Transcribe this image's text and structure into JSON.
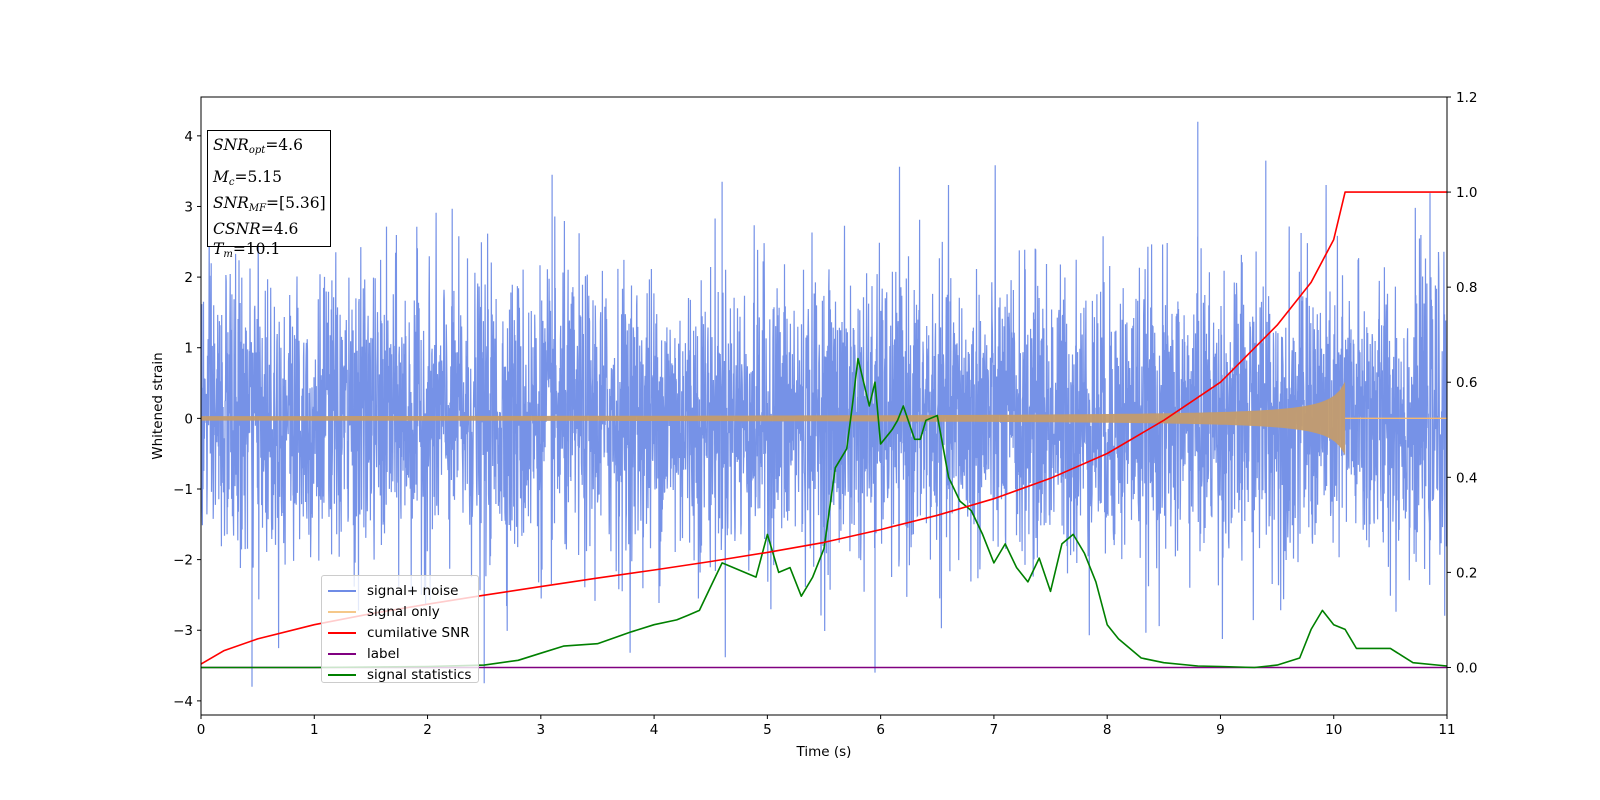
{
  "chart_data": {
    "type": "line",
    "xlabel": "Time (s)",
    "ylabel": "Whitened strain",
    "xlim": [
      0,
      11
    ],
    "ylim_left": [
      -4.2,
      4.55
    ],
    "ylim_right": [
      -0.1,
      1.2
    ],
    "x_ticks": [
      "0",
      "1",
      "2",
      "3",
      "4",
      "5",
      "6",
      "7",
      "8",
      "9",
      "10",
      "11"
    ],
    "y_left_ticks": [
      "−4",
      "−3",
      "−2",
      "−1",
      "0",
      "1",
      "2",
      "3",
      "4"
    ],
    "y_right_ticks": [
      "0.0",
      "0.2",
      "0.4",
      "0.6",
      "0.8",
      "1.0",
      "1.2"
    ],
    "colors": {
      "noise": "#6f8ce6",
      "signal_only": "#f5b870",
      "cumulative": "#ff0000",
      "label": "#800080",
      "statistics": "#008000"
    },
    "annotation": {
      "snr_opt_base": "SNR",
      "snr_opt_sub": "opt",
      "snr_opt_value": "=4.6",
      "mc_base": "M",
      "mc_sub": "c",
      "mc_value": "=5.15",
      "snr_mf_base": "SNR",
      "snr_mf_sub": "MF",
      "snr_mf_value": "=[5.36]",
      "csnr_base": "CSNR",
      "csnr_value": "=4.6",
      "tm_base": "T",
      "tm_sub": "m",
      "tm_value": "=10.1"
    },
    "legend": [
      {
        "name": "signal+ noise",
        "color": "#6f8ce6"
      },
      {
        "name": "signal only",
        "color": "#f5c88a"
      },
      {
        "name": "cumilative SNR",
        "color": "#ff0000"
      },
      {
        "name": "label",
        "color": "#800080"
      },
      {
        "name": "signal statistics",
        "color": "#008000"
      }
    ],
    "series": [
      {
        "name": "signal+ noise",
        "axis": "left",
        "description_level": "white noise, std ~1.0, range approx -3.8 to 4.2",
        "x_range": [
          0,
          11
        ],
        "noise_std": 1.0,
        "peaks": [
          [
            0.45,
            -3.8
          ],
          [
            2.5,
            -3.75
          ],
          [
            5.95,
            -3.6
          ],
          [
            8.8,
            4.2
          ],
          [
            9.4,
            3.65
          ],
          [
            3.1,
            3.45
          ],
          [
            4.6,
            3.35
          ]
        ]
      },
      {
        "name": "signal only",
        "axis": "left",
        "chirp_end": 10.1,
        "amplitude_start": 0.02,
        "amplitude_end": 0.52
      },
      {
        "name": "cumilative SNR",
        "axis": "right",
        "x": [
          0,
          0.2,
          0.5,
          1.0,
          1.5,
          2.0,
          2.5,
          3.0,
          3.5,
          4.0,
          4.5,
          5.0,
          5.5,
          6.0,
          6.5,
          7.0,
          7.5,
          8.0,
          8.5,
          9.0,
          9.5,
          9.8,
          10.0,
          10.1,
          11.0
        ],
        "y": [
          0.007,
          0.035,
          0.06,
          0.09,
          0.113,
          0.133,
          0.152,
          0.17,
          0.188,
          0.205,
          0.223,
          0.242,
          0.263,
          0.29,
          0.32,
          0.355,
          0.398,
          0.45,
          0.52,
          0.6,
          0.72,
          0.81,
          0.9,
          1.0,
          1.0
        ]
      },
      {
        "name": "label",
        "axis": "right",
        "x": [
          0,
          11
        ],
        "y": [
          0.0,
          0.0
        ]
      },
      {
        "name": "signal statistics",
        "axis": "right",
        "x": [
          0,
          0.5,
          1.0,
          2.0,
          2.5,
          2.8,
          3.0,
          3.2,
          3.5,
          3.8,
          4.0,
          4.2,
          4.3,
          4.4,
          4.5,
          4.6,
          4.7,
          4.8,
          4.9,
          5.0,
          5.1,
          5.2,
          5.3,
          5.4,
          5.5,
          5.6,
          5.65,
          5.7,
          5.75,
          5.8,
          5.9,
          5.95,
          6.0,
          6.1,
          6.15,
          6.2,
          6.3,
          6.35,
          6.4,
          6.5,
          6.6,
          6.7,
          6.8,
          6.9,
          7.0,
          7.1,
          7.2,
          7.3,
          7.4,
          7.5,
          7.6,
          7.7,
          7.8,
          7.9,
          8.0,
          8.1,
          8.2,
          8.3,
          8.5,
          8.8,
          9.0,
          9.3,
          9.5,
          9.7,
          9.8,
          9.9,
          10.0,
          10.1,
          10.2,
          10.3,
          10.5,
          10.6,
          10.7,
          11.0
        ],
        "y": [
          0.0,
          0.0,
          0.0,
          0.002,
          0.005,
          0.015,
          0.03,
          0.045,
          0.05,
          0.075,
          0.09,
          0.1,
          0.11,
          0.12,
          0.17,
          0.22,
          0.21,
          0.2,
          0.19,
          0.28,
          0.2,
          0.21,
          0.15,
          0.19,
          0.25,
          0.42,
          0.44,
          0.46,
          0.55,
          0.65,
          0.55,
          0.6,
          0.47,
          0.5,
          0.52,
          0.55,
          0.48,
          0.48,
          0.52,
          0.53,
          0.4,
          0.35,
          0.33,
          0.28,
          0.22,
          0.26,
          0.21,
          0.18,
          0.23,
          0.16,
          0.26,
          0.28,
          0.24,
          0.18,
          0.09,
          0.06,
          0.04,
          0.02,
          0.01,
          0.003,
          0.002,
          0.0,
          0.005,
          0.02,
          0.08,
          0.12,
          0.09,
          0.08,
          0.04,
          0.04,
          0.04,
          0.025,
          0.01,
          0.003
        ]
      }
    ]
  }
}
